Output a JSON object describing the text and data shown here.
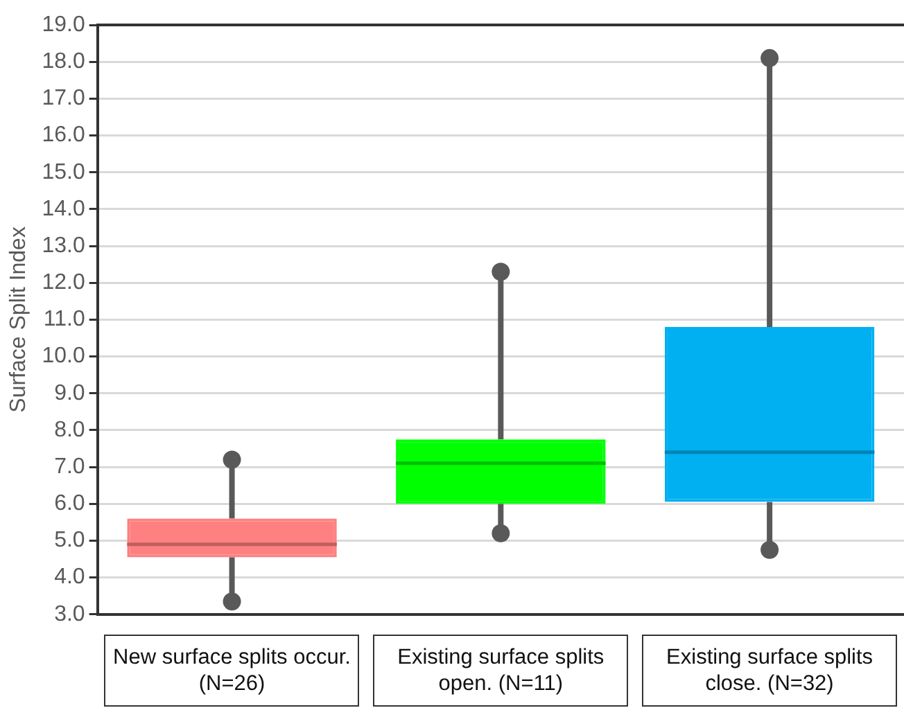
{
  "chart_data": {
    "type": "box",
    "ylabel": "Surface Split Index",
    "categories": [
      "New surface splits occur. (N=26)",
      "Existing surface splits open. (N=11)",
      "Existing surface splits close. (N=32)"
    ],
    "boxes": [
      {
        "low": 3.35,
        "q1": 4.55,
        "median": 4.9,
        "q3": 5.6,
        "high": 7.2
      },
      {
        "low": 5.2,
        "q1": 6.0,
        "median": 7.1,
        "q3": 7.75,
        "high": 12.3
      },
      {
        "low": 4.75,
        "q1": 6.05,
        "median": 7.4,
        "q3": 10.8,
        "high": 18.1
      }
    ],
    "colors": [
      "#ff8080",
      "#00ff00",
      "#00b0f0"
    ],
    "series": [
      {
        "type": "scatter",
        "color": "#595959",
        "marker": "circle",
        "x": [
          "New surface splits occur. (N=26)",
          "New surface splits occur. (N=26)",
          "Existing surface splits open. (N=11)",
          "Existing surface splits open. (N=11)",
          "Existing surface splits close. (N=32)",
          "Existing surface splits close. (N=32)"
        ],
        "values": [
          3.35,
          7.2,
          5.2,
          12.3,
          4.75,
          18.1
        ]
      }
    ],
    "ylim": [
      3,
      19
    ],
    "yticks": [
      {
        "value": 3,
        "label": "3.0"
      },
      {
        "value": 4,
        "label": "4.0"
      },
      {
        "value": 5,
        "label": "5.0"
      },
      {
        "value": 6,
        "label": "6.0"
      },
      {
        "value": 7,
        "label": "7.0"
      },
      {
        "value": 8,
        "label": "8.0"
      },
      {
        "value": 9,
        "label": "9.0"
      },
      {
        "value": 10,
        "label": "10.0"
      },
      {
        "value": 11,
        "label": "11.0"
      },
      {
        "value": 12,
        "label": "12.0"
      },
      {
        "value": 13,
        "label": "13.0"
      },
      {
        "value": 14,
        "label": "14.0"
      },
      {
        "value": 15,
        "label": "15.0"
      },
      {
        "value": 16,
        "label": "16.0"
      },
      {
        "value": 17,
        "label": "17.0"
      },
      {
        "value": 18,
        "label": "18.0"
      },
      {
        "value": 19,
        "label": "19.0"
      }
    ],
    "grid": "y",
    "legend": false
  }
}
